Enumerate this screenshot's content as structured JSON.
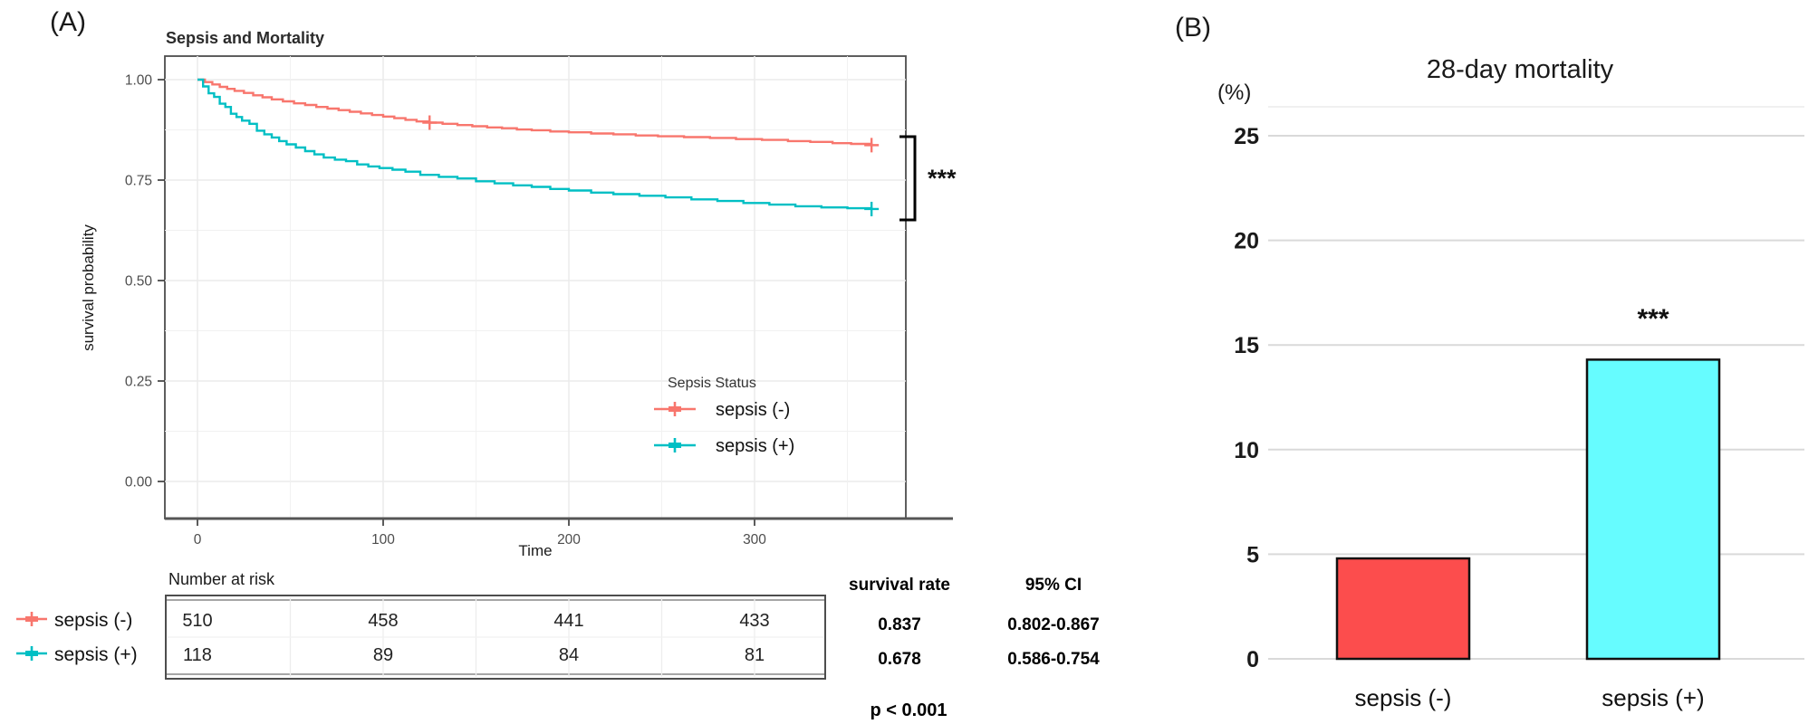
{
  "figure": {
    "panel_a": {
      "label": "(A)",
      "title": "Sepsis and Mortality",
      "xlabel": "Time",
      "ylabel": "survival probability",
      "ytick_labels": [
        "1.00",
        "0.75",
        "0.50",
        "0.25",
        "0.00"
      ],
      "xtick_labels": [
        "0",
        "100",
        "200",
        "300"
      ],
      "legend": {
        "title": "Sepsis Status",
        "items": [
          {
            "label": "sepsis (-)",
            "color": "#F8766D"
          },
          {
            "label": "sepsis (+)",
            "color": "#00BFC4"
          }
        ]
      },
      "significance": "***"
    },
    "risk_table": {
      "title": "Number at risk",
      "time_columns": [
        "0",
        "100",
        "200",
        "300"
      ],
      "rows": [
        {
          "label": "sepsis (-)",
          "color": "#F8766D",
          "counts": [
            "510",
            "458",
            "441",
            "433"
          ],
          "survival_rate": "0.837",
          "ci": "0.802-0.867"
        },
        {
          "label": "sepsis (+)",
          "color": "#00BFC4",
          "counts": [
            "118",
            "89",
            "84",
            "81"
          ],
          "survival_rate": "0.678",
          "ci": "0.586-0.754"
        }
      ],
      "headers": {
        "survival_rate": "survival rate",
        "ci": "95% CI"
      },
      "p_value": "p < 0.001"
    },
    "panel_b": {
      "label": "(B)",
      "title": "28-day mortality",
      "unit": "(%)",
      "ytick_labels": [
        "25",
        "20",
        "15",
        "10",
        "5",
        "0"
      ],
      "significance": "***"
    }
  },
  "chart_data": [
    {
      "type": "line",
      "subtype": "kaplan-meier-step",
      "title": "Sepsis and Mortality",
      "xlabel": "Time",
      "ylabel": "survival probability",
      "xlim": [
        -18,
        382
      ],
      "ylim": [
        0,
        1.06
      ],
      "xticks": [
        0,
        100,
        200,
        300
      ],
      "yticks": [
        1.0,
        0.75,
        0.5,
        0.25,
        0.0
      ],
      "grid": true,
      "legend_position": "inside-lower-right",
      "annotation": "*** (p < 0.001, log-rank bracket between curve ends)",
      "series": [
        {
          "name": "sepsis (-)",
          "color": "#F8766D",
          "final_survival": 0.837,
          "censor_times": [
            125,
            363
          ],
          "points": [
            [
              0,
              1.0
            ],
            [
              4,
              0.994
            ],
            [
              8,
              0.988
            ],
            [
              12,
              0.982
            ],
            [
              16,
              0.977
            ],
            [
              20,
              0.972
            ],
            [
              25,
              0.967
            ],
            [
              30,
              0.961
            ],
            [
              35,
              0.956
            ],
            [
              40,
              0.951
            ],
            [
              46,
              0.946
            ],
            [
              52,
              0.941
            ],
            [
              58,
              0.937
            ],
            [
              64,
              0.932
            ],
            [
              70,
              0.928
            ],
            [
              76,
              0.924
            ],
            [
              82,
              0.92
            ],
            [
              88,
              0.916
            ],
            [
              94,
              0.912
            ],
            [
              100,
              0.908
            ],
            [
              106,
              0.904
            ],
            [
              112,
              0.9
            ],
            [
              118,
              0.896
            ],
            [
              125,
              0.893
            ],
            [
              132,
              0.89
            ],
            [
              140,
              0.887
            ],
            [
              148,
              0.884
            ],
            [
              156,
              0.881
            ],
            [
              164,
              0.879
            ],
            [
              172,
              0.876
            ],
            [
              180,
              0.874
            ],
            [
              190,
              0.871
            ],
            [
              200,
              0.869
            ],
            [
              212,
              0.866
            ],
            [
              224,
              0.864
            ],
            [
              236,
              0.861
            ],
            [
              248,
              0.859
            ],
            [
              262,
              0.857
            ],
            [
              276,
              0.855
            ],
            [
              290,
              0.852
            ],
            [
              304,
              0.85
            ],
            [
              318,
              0.847
            ],
            [
              330,
              0.845
            ],
            [
              342,
              0.842
            ],
            [
              352,
              0.84
            ],
            [
              363,
              0.837
            ]
          ]
        },
        {
          "name": "sepsis (+)",
          "color": "#00BFC4",
          "final_survival": 0.678,
          "censor_times": [
            363
          ],
          "points": [
            [
              0,
              1.0
            ],
            [
              3,
              0.983
            ],
            [
              6,
              0.966
            ],
            [
              9,
              0.957
            ],
            [
              12,
              0.94
            ],
            [
              15,
              0.932
            ],
            [
              18,
              0.915
            ],
            [
              21,
              0.907
            ],
            [
              24,
              0.898
            ],
            [
              28,
              0.89
            ],
            [
              32,
              0.873
            ],
            [
              36,
              0.864
            ],
            [
              40,
              0.856
            ],
            [
              44,
              0.847
            ],
            [
              48,
              0.839
            ],
            [
              53,
              0.831
            ],
            [
              58,
              0.822
            ],
            [
              63,
              0.814
            ],
            [
              68,
              0.806
            ],
            [
              74,
              0.801
            ],
            [
              80,
              0.797
            ],
            [
              86,
              0.789
            ],
            [
              92,
              0.784
            ],
            [
              98,
              0.78
            ],
            [
              105,
              0.776
            ],
            [
              112,
              0.771
            ],
            [
              120,
              0.763
            ],
            [
              130,
              0.758
            ],
            [
              140,
              0.754
            ],
            [
              150,
              0.747
            ],
            [
              160,
              0.742
            ],
            [
              170,
              0.737
            ],
            [
              180,
              0.733
            ],
            [
              190,
              0.728
            ],
            [
              200,
              0.724
            ],
            [
              212,
              0.719
            ],
            [
              224,
              0.715
            ],
            [
              238,
              0.711
            ],
            [
              252,
              0.707
            ],
            [
              266,
              0.702
            ],
            [
              280,
              0.698
            ],
            [
              294,
              0.693
            ],
            [
              308,
              0.689
            ],
            [
              322,
              0.685
            ],
            [
              336,
              0.682
            ],
            [
              350,
              0.68
            ],
            [
              363,
              0.678
            ]
          ]
        }
      ]
    },
    {
      "type": "bar",
      "title": "28-day mortality",
      "ylabel": "(%)",
      "categories": [
        "sepsis (-)",
        "sepsis (+)"
      ],
      "values": [
        4.8,
        14.3
      ],
      "colors": [
        "#FC4D4D",
        "#66FCFF"
      ],
      "bar_border_color": "#111111",
      "ylim": [
        0,
        26.5
      ],
      "yticks": [
        0,
        5,
        10,
        15,
        20,
        25
      ],
      "grid": true,
      "annotations": [
        {
          "category": "sepsis (+)",
          "text": "***"
        }
      ]
    }
  ]
}
